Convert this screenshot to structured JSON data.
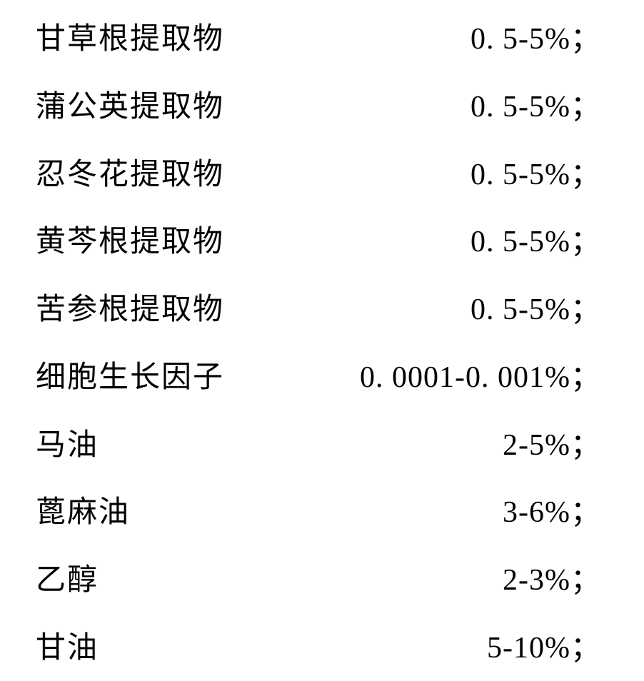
{
  "text_color": "#000000",
  "background_color": "#ffffff",
  "font_size_pt": 32,
  "rows": [
    {
      "ingredient": "甘草根提取物",
      "value": "0. 5-5%；"
    },
    {
      "ingredient": "蒲公英提取物",
      "value": "0. 5-5%；"
    },
    {
      "ingredient": "忍冬花提取物",
      "value": "0. 5-5%；"
    },
    {
      "ingredient": "黄芩根提取物",
      "value": "0. 5-5%；"
    },
    {
      "ingredient": "苦参根提取物",
      "value": "0. 5-5%；"
    },
    {
      "ingredient": "细胞生长因子",
      "value": "0. 0001-0. 001%；"
    },
    {
      "ingredient": "马油",
      "value": "2-5%；"
    },
    {
      "ingredient": "蓖麻油",
      "value": "3-6%；"
    },
    {
      "ingredient": "乙醇",
      "value": "2-3%；"
    },
    {
      "ingredient": "甘油",
      "value": "5-10%；"
    }
  ]
}
